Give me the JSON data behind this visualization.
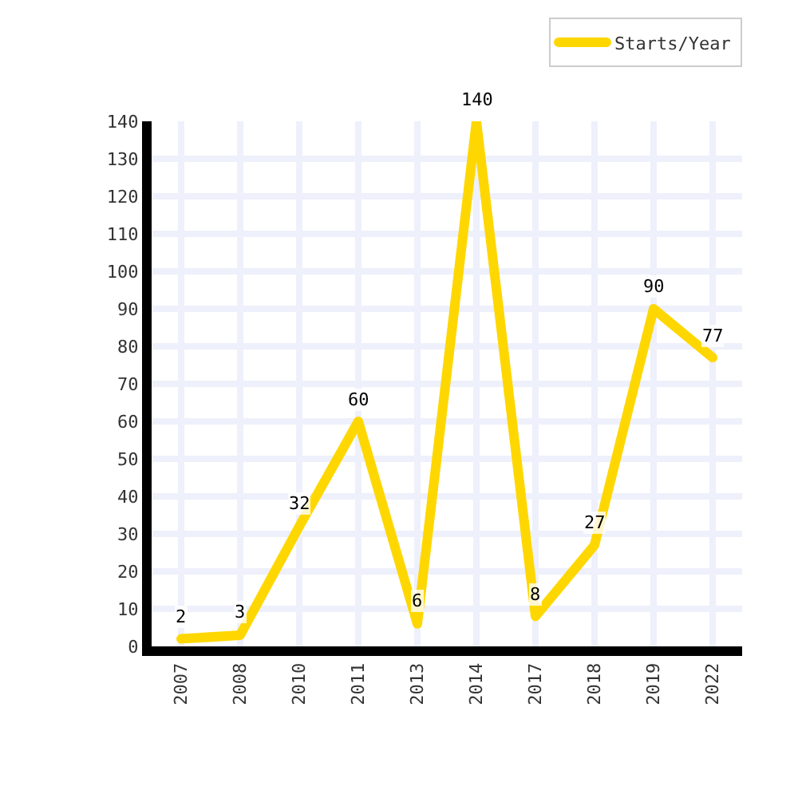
{
  "chart_data": {
    "type": "line",
    "categories": [
      "2007",
      "2008",
      "2010",
      "2011",
      "2013",
      "2014",
      "2017",
      "2018",
      "2019",
      "2022"
    ],
    "series": [
      {
        "name": "Starts/Year",
        "color": "#ffd700",
        "values": [
          2,
          3,
          32,
          60,
          6,
          140,
          8,
          27,
          90,
          77
        ]
      }
    ],
    "ylim": [
      0,
      140
    ],
    "yticks": [
      0,
      10,
      20,
      30,
      40,
      50,
      60,
      70,
      80,
      90,
      100,
      110,
      120,
      130,
      140
    ],
    "grid": true,
    "legend": "top right",
    "marker": "none",
    "line_style": "solid",
    "data_labels": true
  }
}
